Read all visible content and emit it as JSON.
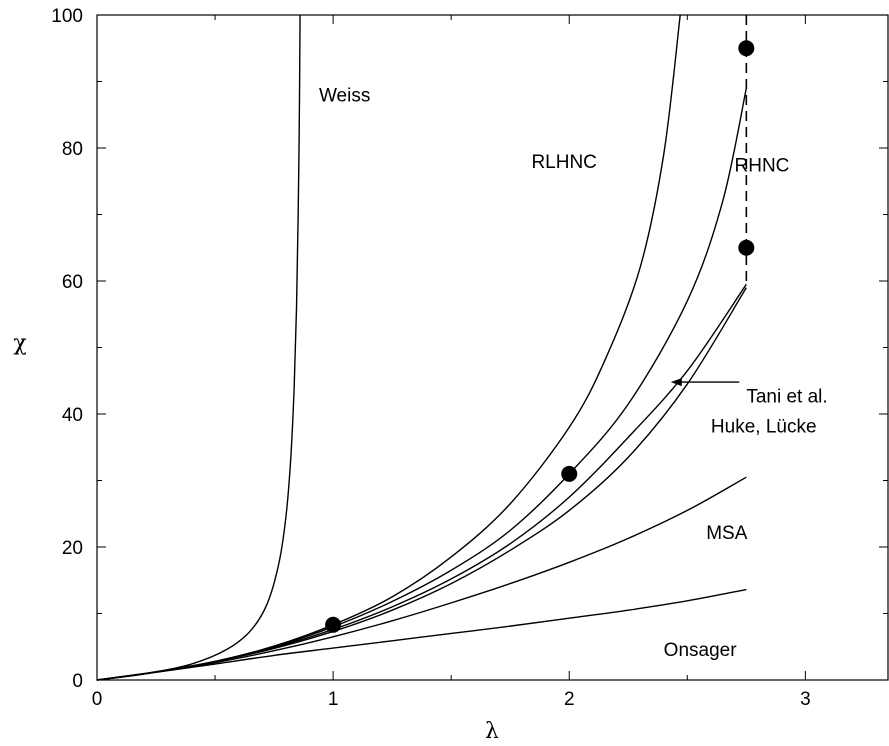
{
  "chart_data": {
    "type": "line",
    "title": "",
    "xlabel": "λ",
    "ylabel": "χ",
    "xlim": [
      0,
      3.35
    ],
    "ylim": [
      0,
      100
    ],
    "grid": false,
    "legend": "none",
    "x_ticks": [
      "0",
      "1",
      "2",
      "3"
    ],
    "y_ticks": [
      "0",
      "20",
      "40",
      "60",
      "80",
      "100"
    ],
    "series": [
      {
        "name": "Weiss",
        "x": [
          0,
          0.2,
          0.4,
          0.55,
          0.65,
          0.72,
          0.77,
          0.8,
          0.82,
          0.835,
          0.845,
          0.852,
          0.857,
          0.86
        ],
        "y": [
          0,
          0.9,
          2.4,
          4.6,
          7.4,
          11.4,
          17.5,
          24.5,
          33,
          44,
          56,
          70,
          85,
          100
        ]
      },
      {
        "name": "RLHNC",
        "x": [
          0,
          0.25,
          0.5,
          0.75,
          1.0,
          1.25,
          1.5,
          1.75,
          2.0,
          2.15,
          2.3,
          2.4,
          2.47
        ],
        "y": [
          0,
          1.25,
          2.8,
          5.1,
          8.3,
          12.5,
          18.5,
          26.5,
          38,
          48,
          62,
          79,
          100
        ]
      },
      {
        "name": "RHNC",
        "x": [
          0,
          0.25,
          0.5,
          0.75,
          1.0,
          1.25,
          1.5,
          1.75,
          2.0,
          2.25,
          2.5,
          2.65,
          2.75
        ],
        "y": [
          0,
          1.2,
          2.8,
          5.0,
          8.0,
          11.8,
          16.5,
          22.5,
          31,
          41.5,
          57,
          72,
          89
        ]
      },
      {
        "name": "Tani et al.",
        "x": [
          0,
          0.25,
          0.5,
          0.75,
          1.0,
          1.25,
          1.5,
          1.75,
          2.0,
          2.25,
          2.5,
          2.75
        ],
        "y": [
          0,
          1.2,
          2.8,
          4.9,
          7.6,
          11.0,
          15.2,
          20.5,
          27.5,
          36.5,
          46.5,
          59.5
        ]
      },
      {
        "name": "Huke, Lücke",
        "x": [
          0,
          0.25,
          0.5,
          0.75,
          1.0,
          1.25,
          1.5,
          1.75,
          2.0,
          2.25,
          2.5,
          2.75
        ],
        "y": [
          0,
          1.2,
          2.75,
          4.75,
          7.3,
          10.5,
          14.5,
          19.5,
          25.5,
          33.5,
          44.5,
          59
        ]
      },
      {
        "name": "MSA",
        "x": [
          0,
          0.25,
          0.5,
          0.75,
          1.0,
          1.25,
          1.5,
          1.75,
          2.0,
          2.25,
          2.5,
          2.75
        ],
        "y": [
          0,
          1.2,
          2.6,
          4.4,
          6.5,
          8.9,
          11.6,
          14.5,
          17.7,
          21.3,
          25.5,
          30.5
        ]
      },
      {
        "name": "Onsager",
        "x": [
          0,
          0.25,
          0.5,
          0.75,
          1.0,
          1.25,
          1.5,
          1.75,
          2.0,
          2.25,
          2.5,
          2.75
        ],
        "y": [
          0,
          1.15,
          2.4,
          3.7,
          4.8,
          5.9,
          7.0,
          8.1,
          9.3,
          10.5,
          11.9,
          13.6
        ]
      }
    ],
    "points": [
      {
        "x": 1.0,
        "y": 8.3
      },
      {
        "x": 2.0,
        "y": 31
      },
      {
        "x": 2.75,
        "y": 65
      },
      {
        "x": 2.75,
        "y": 95
      }
    ],
    "vertical_dashed": {
      "x": 2.75,
      "y": [
        60,
        100
      ]
    },
    "curve_labels": [
      {
        "text": "Weiss",
        "x": 0.94,
        "y": 87
      },
      {
        "text": "RLHNC",
        "x": 1.84,
        "y": 77
      },
      {
        "text": "RHNC",
        "x": 2.7,
        "y": 76.5
      },
      {
        "text": "Tani et al.",
        "x": 2.75,
        "y": 41.7
      },
      {
        "text": "Huke, Lücke",
        "x": 2.6,
        "y": 37.2
      },
      {
        "text": "MSA",
        "x": 2.58,
        "y": 21.2
      },
      {
        "text": "Onsager",
        "x": 2.4,
        "y": 3.6
      }
    ],
    "arrow": {
      "from": {
        "x": 2.72,
        "y": 44.8
      },
      "to": {
        "x": 2.43,
        "y": 44.8
      }
    }
  }
}
